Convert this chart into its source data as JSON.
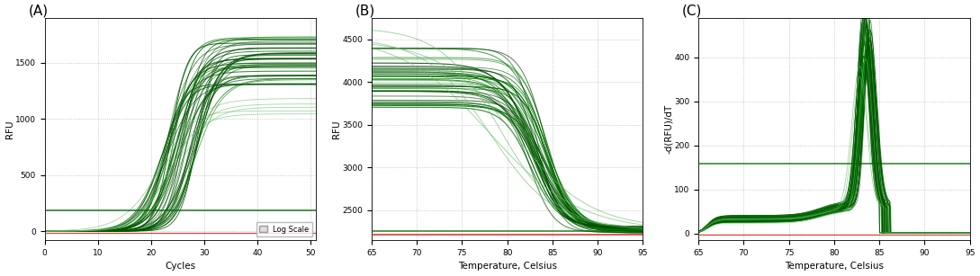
{
  "panel_labels": [
    "(A)",
    "(B)",
    "(C)"
  ],
  "panel_label_fontsize": 11,
  "background_color": "#ffffff",
  "plot_bg_color": "#ffffff",
  "grid_color": "#bbbbbb",
  "red_color": "#dd2222",
  "panelA": {
    "xlabel": "Cycles",
    "ylabel": "RFU",
    "xlim": [
      0,
      51
    ],
    "ylim": [
      -80,
      1900
    ],
    "xticks": [
      0,
      10,
      20,
      30,
      40,
      50
    ],
    "yticks": [
      0,
      500,
      1000,
      1500
    ],
    "n_main_curves": 40,
    "n_light_curves": 5,
    "flat_green_y": 185,
    "flat_red_y": -15,
    "legend_text": "Log Scale"
  },
  "panelB": {
    "xlabel": "Temperature, Celsius",
    "ylabel": "RFU",
    "xlim": [
      65,
      95
    ],
    "ylim": [
      2150,
      4750
    ],
    "xticks": [
      65,
      70,
      75,
      80,
      85,
      90,
      95
    ],
    "yticks": [
      2500,
      3000,
      3500,
      4000,
      4500
    ],
    "n_main_curves": 40,
    "n_light_curves": 4,
    "flat_green_y": 2260,
    "flat_red_y": 2215
  },
  "panelC": {
    "xlabel": "Temperature, Celsius",
    "ylabel": "-d(RFU)/dT",
    "xlim": [
      65,
      95
    ],
    "ylim": [
      -15,
      490
    ],
    "xticks": [
      65,
      70,
      75,
      80,
      85,
      90,
      95
    ],
    "yticks": [
      0,
      100,
      200,
      300,
      400
    ],
    "n_main_curves": 40,
    "n_light_curves": 3,
    "flat_green_y": 158,
    "flat_red_y": -3
  }
}
